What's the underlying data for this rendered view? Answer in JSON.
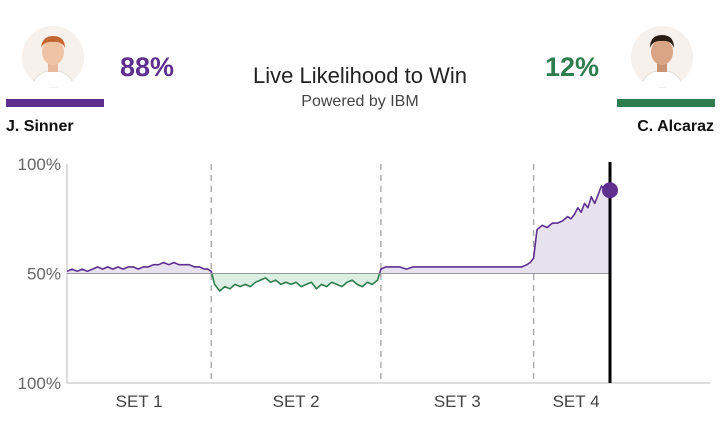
{
  "header": {
    "title": "Live Likelihood to Win",
    "subtitle": "Powered by IBM"
  },
  "players": {
    "left": {
      "name": "J. Sinner",
      "percent": "88%",
      "color": "#5e2f8f"
    },
    "right": {
      "name": "C. Alcaraz",
      "percent": "12%",
      "color": "#2e7d4f"
    }
  },
  "chart_data": {
    "type": "line",
    "ylim": [
      0,
      100
    ],
    "y_ticks": [
      {
        "value": 100,
        "label": "100%"
      },
      {
        "value": 50,
        "label": "50%"
      },
      {
        "value": 0,
        "label": "100%"
      }
    ],
    "baseline": 50,
    "x_range": [
      0,
      32
    ],
    "set_boundaries": [
      8.5,
      18.5,
      27.5
    ],
    "categories": [
      "SET 1",
      "SET 2",
      "SET 3",
      "SET 4"
    ],
    "category_centers": [
      4.25,
      13.5,
      23,
      30
    ],
    "current_x": 32,
    "current_value": 88,
    "colors": {
      "above": "#5e2f8f",
      "below": "#2e7d4f",
      "fill_above": "#e8e1f0",
      "fill_below": "#dcefe3",
      "grid": "#bbbbbb"
    },
    "series": [
      {
        "values": [
          [
            0,
            51
          ],
          [
            0.3,
            52
          ],
          [
            0.6,
            51
          ],
          [
            0.9,
            52
          ],
          [
            1.2,
            51
          ],
          [
            1.5,
            52
          ],
          [
            1.8,
            53
          ],
          [
            2.1,
            52
          ],
          [
            2.4,
            53
          ],
          [
            2.7,
            52
          ],
          [
            3,
            53
          ],
          [
            3.3,
            52
          ],
          [
            3.6,
            53
          ],
          [
            3.9,
            53
          ],
          [
            4.2,
            52
          ],
          [
            4.5,
            53
          ],
          [
            4.8,
            53
          ],
          [
            5.1,
            54
          ],
          [
            5.4,
            54
          ],
          [
            5.7,
            55
          ],
          [
            6,
            54
          ],
          [
            6.3,
            55
          ],
          [
            6.6,
            54
          ],
          [
            6.9,
            54
          ],
          [
            7.2,
            54
          ],
          [
            7.5,
            53
          ],
          [
            7.8,
            53
          ],
          [
            8.1,
            52
          ],
          [
            8.3,
            52
          ],
          [
            8.5,
            51
          ],
          [
            8.7,
            45
          ],
          [
            9,
            42
          ],
          [
            9.3,
            44
          ],
          [
            9.6,
            43
          ],
          [
            9.9,
            45
          ],
          [
            10.2,
            44
          ],
          [
            10.5,
            45
          ],
          [
            10.8,
            44
          ],
          [
            11.1,
            46
          ],
          [
            11.4,
            47
          ],
          [
            11.7,
            48
          ],
          [
            12,
            46
          ],
          [
            12.3,
            47
          ],
          [
            12.6,
            45
          ],
          [
            12.9,
            46
          ],
          [
            13.2,
            45
          ],
          [
            13.5,
            46
          ],
          [
            13.8,
            44
          ],
          [
            14.1,
            45
          ],
          [
            14.4,
            46
          ],
          [
            14.7,
            43
          ],
          [
            15,
            45
          ],
          [
            15.3,
            44
          ],
          [
            15.6,
            46
          ],
          [
            15.9,
            45
          ],
          [
            16.2,
            44
          ],
          [
            16.5,
            46
          ],
          [
            16.8,
            47
          ],
          [
            17.1,
            45
          ],
          [
            17.4,
            44
          ],
          [
            17.7,
            46
          ],
          [
            18,
            45
          ],
          [
            18.3,
            47
          ],
          [
            18.5,
            52
          ],
          [
            18.8,
            53
          ],
          [
            19.2,
            53
          ],
          [
            19.6,
            53
          ],
          [
            20,
            52
          ],
          [
            20.4,
            53
          ],
          [
            20.8,
            53
          ],
          [
            21.2,
            53
          ],
          [
            21.6,
            53
          ],
          [
            22,
            53
          ],
          [
            22.4,
            53
          ],
          [
            22.8,
            53
          ],
          [
            23.2,
            53
          ],
          [
            23.6,
            53
          ],
          [
            24,
            53
          ],
          [
            24.4,
            53
          ],
          [
            24.8,
            53
          ],
          [
            25.2,
            53
          ],
          [
            25.6,
            53
          ],
          [
            26,
            53
          ],
          [
            26.4,
            53
          ],
          [
            26.8,
            53
          ],
          [
            27.1,
            54
          ],
          [
            27.3,
            55
          ],
          [
            27.5,
            57
          ],
          [
            27.7,
            70
          ],
          [
            28,
            72
          ],
          [
            28.3,
            71
          ],
          [
            28.6,
            73
          ],
          [
            28.9,
            73
          ],
          [
            29.2,
            74
          ],
          [
            29.5,
            76
          ],
          [
            29.7,
            75
          ],
          [
            29.9,
            77
          ],
          [
            30.1,
            80
          ],
          [
            30.3,
            78
          ],
          [
            30.5,
            82
          ],
          [
            30.7,
            80
          ],
          [
            30.9,
            85
          ],
          [
            31.1,
            82
          ],
          [
            31.3,
            86
          ],
          [
            31.5,
            90
          ],
          [
            31.7,
            88
          ],
          [
            31.9,
            91
          ],
          [
            32,
            88
          ]
        ]
      }
    ]
  }
}
